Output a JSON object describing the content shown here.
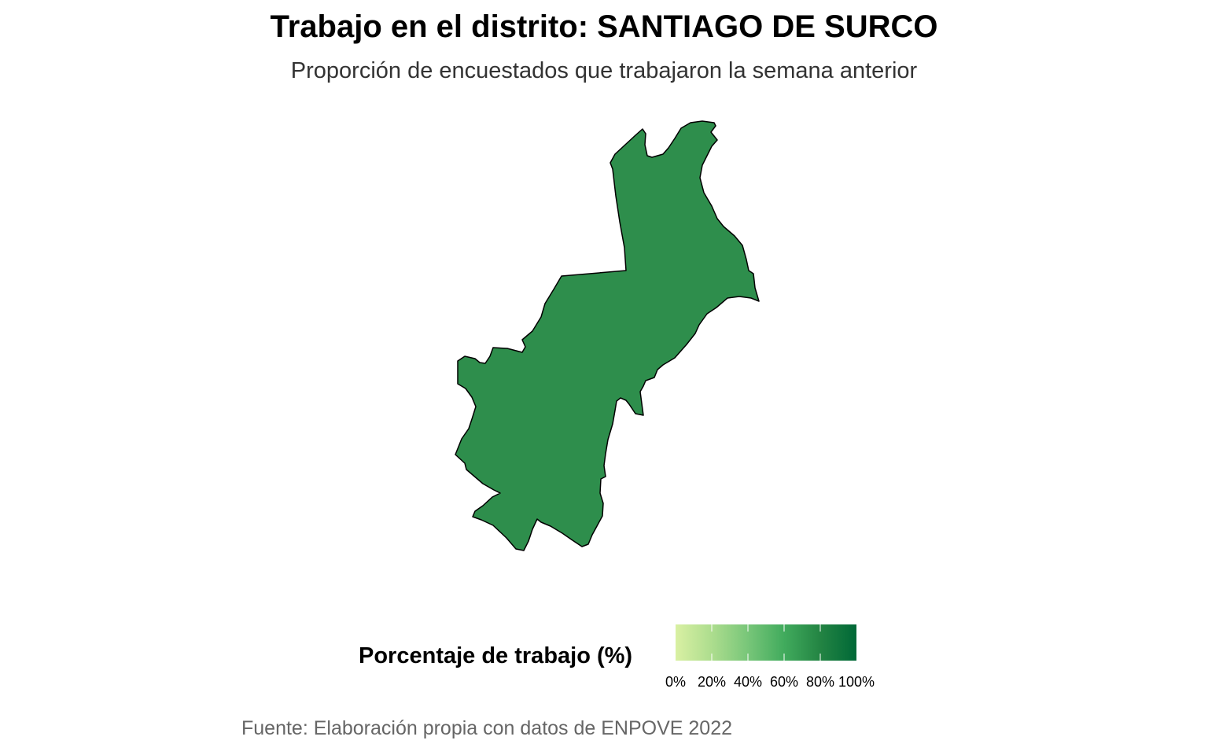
{
  "title": "Trabajo en el distrito: SANTIAGO DE SURCO",
  "subtitle": "Proporción de encuestados que trabajaron la semana anterior",
  "map": {
    "region_name": "SANTIAGO DE SURCO",
    "region_fill": "#2e8e4c",
    "border_color": "#000000"
  },
  "legend": {
    "title": "Porcentaje de trabajo (%)",
    "scale_colors": [
      "#d9f0a3",
      "#addd8e",
      "#78c679",
      "#41ab5d",
      "#238443",
      "#006837"
    ],
    "ticks": [
      {
        "value": 0,
        "label": "0%"
      },
      {
        "value": 20,
        "label": "20%"
      },
      {
        "value": 40,
        "label": "40%"
      },
      {
        "value": 60,
        "label": "60%"
      },
      {
        "value": 80,
        "label": "80%"
      },
      {
        "value": 100,
        "label": "100%"
      }
    ]
  },
  "caption": "Fuente: Elaboración propia con datos de ENPOVE 2022"
}
